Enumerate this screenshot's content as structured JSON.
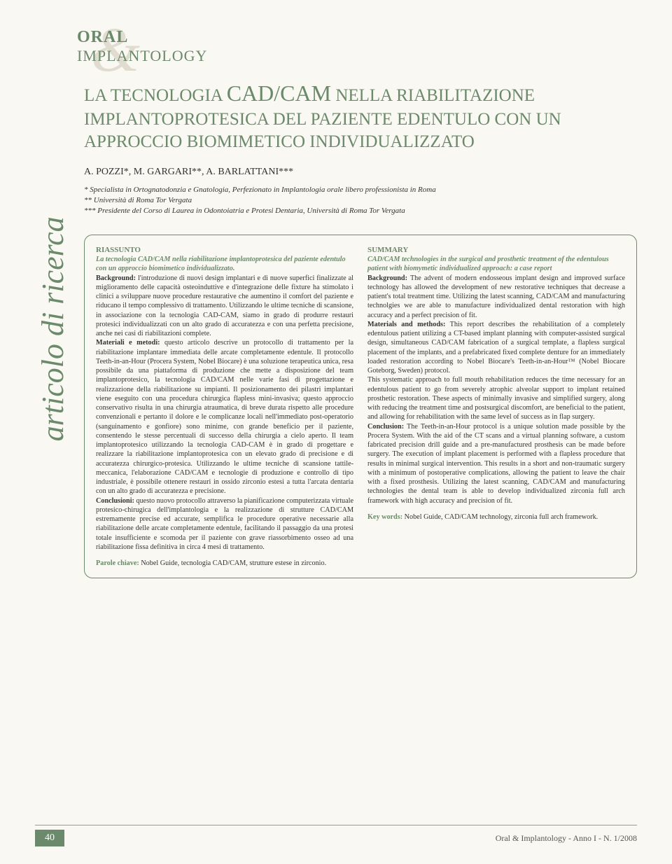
{
  "journal": {
    "line1": "ORAL",
    "line2": "IMPLANTOLOGY"
  },
  "side_label": "articolo di ricerca",
  "title": {
    "pre": "LA TECNOLOGIA ",
    "big1": "CAD/CAM",
    "mid": " NELLA RIABILITAZIONE IMPLANTOPROTESICA DEL PAZIENTE EDENTULO CON UN APPROCCIO BIOMIMETICO INDIVIDUALIZZATO"
  },
  "authors": "A. POZZI*, M. GARGARI**, A. BARLATTANI***",
  "affiliations": [
    "* Specialista in Ortognatodonzia e Gnatologia, Perfezionato in Implantologia orale libero professionista in Roma",
    "** Università di Roma Tor Vergata",
    "*** Presidente del Corso di Laurea in Odontoiatria e Protesi Dentaria, Università di Roma Tor Vergata"
  ],
  "abstract_it": {
    "heading": "RIASSUNTO",
    "subtitle": "La tecnologia CAD/CAM nella riabilitazione implantoprotesica del paziente edentulo con un approccio biomimetico individualizzato.",
    "body": "<b>Background:</b> l'introduzione di nuovi design implantari e di nuove superfici finalizzate al miglioramento delle capacità osteoinduttive e d'integrazione delle fixture ha stimolato i clinici a sviluppare nuove procedure restaurative che aumentino il comfort del paziente e riducano il tempo complessivo di trattamento. Utilizzando le ultime tecniche di scansione, in associazione con la tecnologia CAD-CAM, siamo in grado di produrre restauri protesici individualizzati con un alto grado di accuratezza e con una perfetta precisione, anche nei casi di riabilitazioni complete.<br><b>Materiali e metodi:</b> questo articolo descrive un protocollo di trattamento per la riabilitazione implantare immediata delle arcate completamente edentule. Il protocollo Teeth-in-an-Hour (Procera System, Nobel Biocare) è una soluzione terapeutica unica, resa possibile da una piattaforma di produzione che mette a disposizione del team implantoprotesico, la tecnologia CAD/CAM nelle varie fasi di progettazione e realizzazione della riabilitazione su impianti. Il posizionamento dei pilastri implantari viene eseguito con una procedura chirurgica flapless mini-invasiva; questo approccio conservativo risulta in una chirurgia atraumatica, di breve durata rispetto alle procedure convenzionali e pertanto il dolore e le complicanze locali nell'immediato post-operatorio (sanguinamento e gonfiore) sono minime, con grande beneficio per il paziente, consentendo le stesse percentuali di successo della chirurgia a cielo aperto. Il team implantoprotesico utilizzando la tecnologia CAD-CAM è in grado di progettare e realizzare la riabilitazione implantoprotesica con un elevato grado di precisione e di accuratezza chirurgico-protesica. Utilizzando le ultime tecniche di scansione tattile-meccanica, l'elaborazione CAD/CAM e tecnologie di produzione e controllo di tipo industriale, è possibile ottenere restauri in ossido zirconio estesi a tutta l'arcata dentaria con un alto grado di accuratezza e precisione.<br><b>Conclusioni:</b> questo nuovo protocollo attraverso la pianificazione computerizzata virtuale protesico-chirugica dell'implantologia e la realizzazione di strutture CAD/CAM estremamente precise ed accurate, semplifica le procedure operative necessarie alla riabilitazione delle arcate completamente edentule, facilitando il passaggio da una protesi totale insufficiente e scomoda per il paziente con grave riassorbimento osseo ad una riabilitazione fissa definitiva in circa 4 mesi di trattamento.",
    "kw_label": "Parole chiave:",
    "kw_text": " Nobel Guide, tecnologia CAD/CAM, strutture estese in zirconio."
  },
  "abstract_en": {
    "heading": "SUMMARY",
    "subtitle": "CAD/CAM technologies in the surgical and prosthetic treatment of the edentulous patient with biomymetic individualized approach: a case report",
    "body": "<b>Background:</b> The advent of modern endosseous implant design and improved surface technology has allowed the development of new restorative techniques that decrease a patient's total treatment time. Utilizing the latest scanning, CAD/CAM and manufacturing technolgies we are able to manufacture individualized dental restoration with high accuracy and a perfect precision of fit.<br><b>Materials and methods:</b> This report describes the rehabilitation of a completely edentulous patient utilizing a CT-based implant planning with computer-assisted surgical design, simultaneous CAD/CAM fabrication of a surgical template, a flapless surgical placement of the implants, and a prefabricated fixed complete denture for an immediately loaded restoration according to Nobel Biocare's Teeth-in-an-Hour™ (Nobel Biocare Goteborg, Sweden) protocol.<br>This systematic approach to full mouth rehabilitation reduces the time necessary for an edentulous patient to go from severely atrophic alveolar support to implant retained prosthetic restoration. These aspects of minimally invasive and simplified surgery, along with reducing the treatment time and postsurgical discomfort, are beneficial to the patient, and allowing for rehabilitation with the same level of success as in flap surgery.<br><b>Conclusion:</b> The Teeth-in-an-Hour protocol is a unique solution made possible by the Procera System. With the aid of the CT scans and a virtual planning software, a custom fabricated precision drill guide and a pre-manufactured prosthesis can be made before surgery. The execution of implant placement is performed with a flapless procedure that results in minimal surgical intervention. This results in a short and non-traumatic surgery with a minimum of postoperative complications, allowing the patient to leave the chair with a fixed prosthesis. Utilizing the latest scanning, CAD/CAM and manufacturing technologies the dental team is able to develop individualized zirconia full arch framework with high accuracy and precision of fit.",
    "kw_label": "Key words:",
    "kw_text": " Nobel Guide, CAD/CAM technology, zirconia full arch framework."
  },
  "footer": {
    "page_num": "40",
    "text": "Oral & Implantology - Anno I - N. 1/2008"
  },
  "colors": {
    "accent": "#6b8a6b",
    "bg": "#faf8f2",
    "watermark": "#e0ddd0"
  }
}
